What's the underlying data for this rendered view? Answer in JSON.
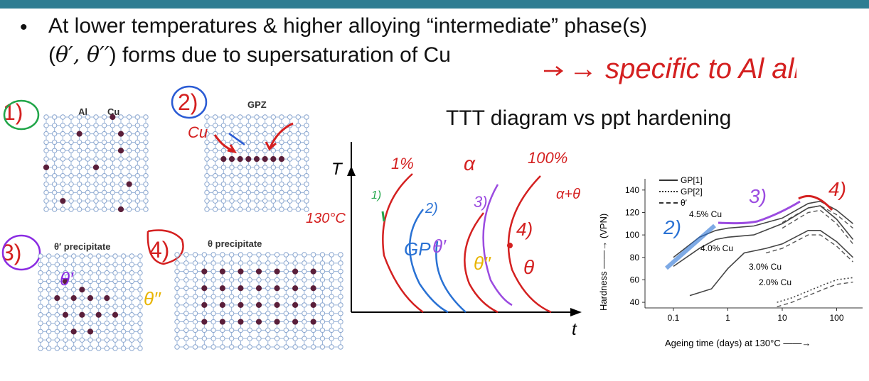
{
  "slide": {
    "bullet_char": "•",
    "line1": "At lower temperatures & higher alloying “intermediate” phase(s)",
    "line2_open": "(",
    "line2_math": "θ′, θ′′",
    "line2_rest": ") forms due to supersaturation of Cu",
    "ttt_title": "TTT diagram vs ppt hardening"
  },
  "panels": {
    "p1": {
      "number": "1)",
      "label_al": "Al",
      "label_cu": "Cu"
    },
    "p2": {
      "number": "2)",
      "title": "GPZ"
    },
    "p3": {
      "number": "3)",
      "title": "θ′ precipitate"
    },
    "p4": {
      "number": "4)",
      "title": "θ precipitate"
    }
  },
  "ttt_diagram": {
    "y_axis_label": "T",
    "x_axis_label": "t"
  },
  "hardness_chart": {
    "legend": [
      "GP[1]",
      "GP[2]",
      "θ′"
    ],
    "ylabel": "Hardness ——→ (VPN)",
    "xlabel": "Ageing time (days) at 130°C ——→",
    "yticks": [
      "140",
      "120",
      "100",
      "80",
      "60",
      "40"
    ],
    "xticks": [
      "0.1",
      "1",
      "10",
      "100"
    ],
    "curve_labels": [
      "4.5% Cu",
      "4.0% Cu",
      "3.0% Cu",
      "2.0% Cu"
    ]
  },
  "handwriting": {
    "specific": "→ specific to Al alloys",
    "ttt_notes": [
      "1%",
      "α",
      "100%",
      "α+θ",
      "130°C",
      "1)",
      "2)",
      "3)",
      "4)",
      "GP",
      "θ′",
      "θ′′",
      "θ",
      "Cu"
    ],
    "chart_notes": [
      "2)",
      "3)",
      "4)"
    ],
    "panel_notes": [
      "θ′",
      "θ′′"
    ]
  },
  "chart_data": {
    "type": "line",
    "title": "",
    "xlabel": "Ageing time (days) at 130°C",
    "ylabel": "Hardness (VPN)",
    "x_scale": "log",
    "xlim": [
      0.03,
      300
    ],
    "ylim": [
      35,
      150
    ],
    "legend_position": "top-left",
    "series": [
      {
        "name": "4.5% Cu",
        "x": [
          0.1,
          0.3,
          0.6,
          1,
          3,
          10,
          30,
          50,
          100,
          200
        ],
        "y": [
          80,
          98,
          104,
          106,
          108,
          115,
          128,
          130,
          122,
          110
        ]
      },
      {
        "name": "4.0% Cu",
        "x": [
          0.1,
          0.3,
          0.6,
          1,
          3,
          10,
          30,
          50,
          100,
          200
        ],
        "y": [
          72,
          88,
          96,
          98,
          100,
          110,
          124,
          126,
          114,
          96
        ]
      },
      {
        "name": "3.0% Cu",
        "x": [
          0.2,
          0.5,
          1,
          2,
          5,
          10,
          30,
          50,
          100,
          200
        ],
        "y": [
          46,
          52,
          70,
          84,
          88,
          92,
          104,
          104,
          94,
          80
        ]
      },
      {
        "name": "2.0% Cu",
        "x": [
          8,
          15,
          30,
          60,
          100,
          200
        ],
        "y": [
          40,
          44,
          50,
          56,
          60,
          62
        ]
      }
    ]
  }
}
